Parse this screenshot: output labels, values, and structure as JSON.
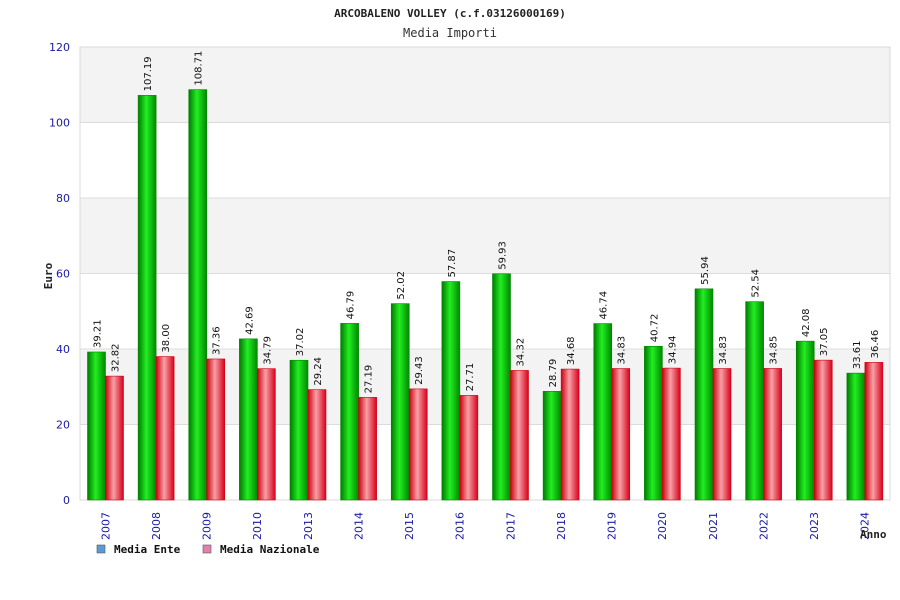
{
  "chart_data": {
    "type": "bar",
    "title": "ARCOBALENO VOLLEY (c.f.03126000169)",
    "subtitle": "Media Importi",
    "ylabel": "Euro",
    "xlabel": "Anno",
    "ylim": [
      0,
      120
    ],
    "yticks": [
      0,
      20,
      40,
      60,
      80,
      100,
      120
    ],
    "categories": [
      "2007",
      "2008",
      "2009",
      "2010",
      "2013",
      "2014",
      "2015",
      "2016",
      "2017",
      "2018",
      "2019",
      "2020",
      "2021",
      "2022",
      "2023",
      "2024"
    ],
    "series": [
      {
        "name": "Media Ente",
        "color": "#00bb00",
        "values": [
          39.21,
          107.19,
          108.71,
          42.69,
          37.02,
          46.79,
          52.02,
          57.87,
          59.93,
          28.79,
          46.74,
          40.72,
          55.94,
          52.54,
          42.08,
          33.61
        ],
        "labels": [
          "39.21",
          "107.19",
          "108.71",
          "42.69",
          "37.02",
          "46.79",
          "52.02",
          "57.87",
          "59.93",
          "28.79",
          "46.74",
          "40.72",
          "55.94",
          "52.54",
          "42.08",
          "33.61"
        ]
      },
      {
        "name": "Media Nazionale",
        "color": "#e8101a",
        "values": [
          32.82,
          38.0,
          37.36,
          34.79,
          29.24,
          27.19,
          29.43,
          27.71,
          34.32,
          34.68,
          34.83,
          34.94,
          34.83,
          34.85,
          37.05,
          36.46
        ],
        "labels": [
          "32.82",
          "38.00",
          "37.36",
          "34.79",
          "29.24",
          "27.19",
          "29.43",
          "27.71",
          "34.32",
          "34.68",
          "34.83",
          "34.94",
          "34.83",
          "34.85",
          "37.05",
          "36.46"
        ]
      }
    ],
    "legend": [
      {
        "label": "Media Ente",
        "swatch": "#5b9bd5"
      },
      {
        "label": "Media Nazionale",
        "swatch": "#e67fb0"
      }
    ],
    "grid": true,
    "legend_position": "bottom-left"
  }
}
